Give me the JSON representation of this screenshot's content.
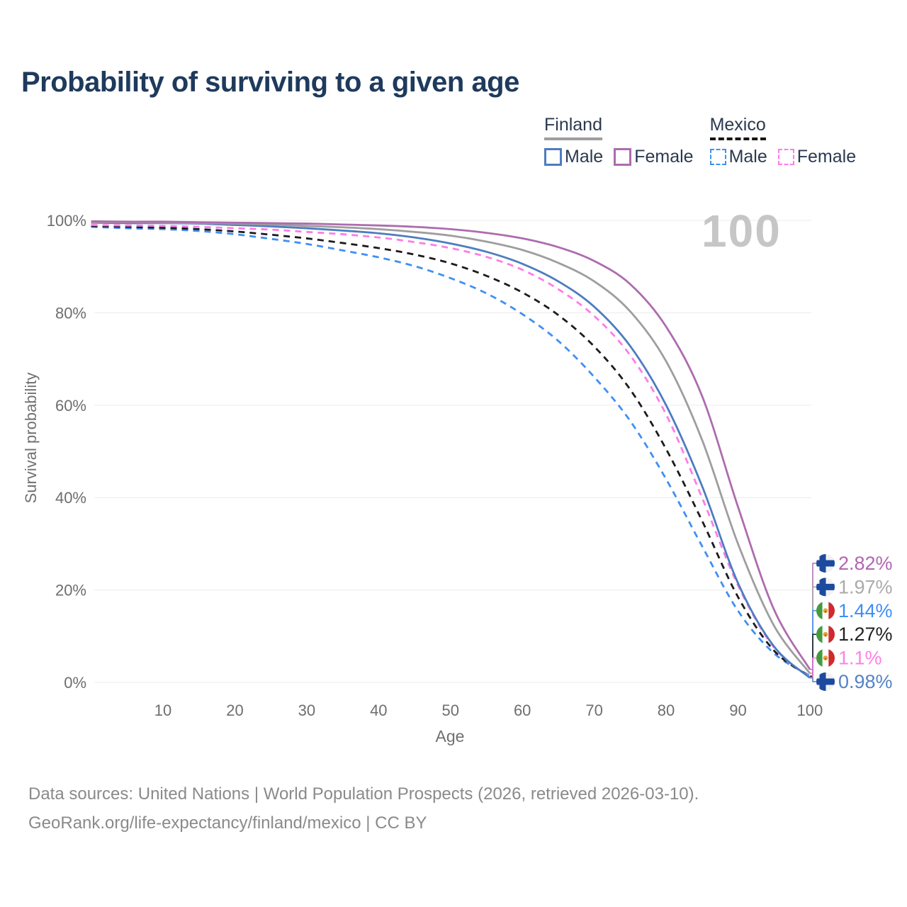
{
  "title": "Probability of surviving to a given age",
  "legend": {
    "groups": [
      {
        "label": "Finland",
        "underline_style": "solid",
        "underline_color": "#9e9e9e",
        "items": [
          {
            "label": "Male",
            "color": "#4d7dbf",
            "dashed": false
          },
          {
            "label": "Female",
            "color": "#ad6cae",
            "dashed": false
          }
        ]
      },
      {
        "label": "Mexico",
        "underline_style": "dashed",
        "underline_color": "#161616",
        "items": [
          {
            "label": "Male",
            "color": "#3f90f4",
            "dashed": true
          },
          {
            "label": "Female",
            "color": "#ff7ce6",
            "dashed": true
          }
        ]
      }
    ]
  },
  "chart_data": {
    "type": "line",
    "title": "Probability of surviving to a given age",
    "xlabel": "Age",
    "ylabel": "Survival probability",
    "hover_age": "100",
    "xlim": [
      0,
      100
    ],
    "ylim": [
      0,
      100
    ],
    "grid": "horizontal",
    "legend_position": "top-right",
    "x_ticks": [
      10,
      20,
      30,
      40,
      50,
      60,
      70,
      80,
      90,
      100
    ],
    "y_ticks": [
      {
        "value": 100,
        "label": "100%"
      },
      {
        "value": 80,
        "label": "80%"
      },
      {
        "value": 60,
        "label": "60%"
      },
      {
        "value": 40,
        "label": "40%"
      },
      {
        "value": 20,
        "label": "20%"
      },
      {
        "value": 0,
        "label": "0%"
      }
    ],
    "ages": [
      0,
      5,
      10,
      15,
      20,
      25,
      30,
      35,
      40,
      45,
      50,
      55,
      60,
      65,
      70,
      75,
      80,
      85,
      90,
      95,
      100
    ],
    "series": [
      {
        "id": "mexico-male",
        "name": "Mexico Male",
        "country": "Mexico",
        "sex": "Male",
        "color": "#3f90f4",
        "label_color": "#3f8ef5",
        "dashed": true,
        "flag": "MX",
        "end_label": "1.44%",
        "values": [
          98.6,
          98.3,
          98.1,
          97.7,
          97.0,
          96.0,
          94.9,
          93.5,
          92.0,
          90.1,
          87.5,
          84.2,
          79.7,
          73.9,
          66.1,
          56.6,
          44.0,
          29.5,
          15.5,
          6.3,
          1.44
        ]
      },
      {
        "id": "mexico-total",
        "name": "Mexico",
        "country": "Mexico",
        "sex": "Both",
        "color": "#1b1b1b",
        "label_color": "#222222",
        "dashed": true,
        "flag": "MX",
        "end_label": "1.27%",
        "values": [
          98.8,
          98.6,
          98.4,
          98.1,
          97.6,
          96.9,
          96.1,
          95.1,
          94.0,
          92.6,
          90.7,
          88.0,
          84.4,
          79.5,
          72.7,
          63.4,
          50.5,
          35.0,
          18.5,
          6.9,
          1.27
        ]
      },
      {
        "id": "mexico-female",
        "name": "Mexico Female",
        "country": "Mexico",
        "sex": "Female",
        "color": "#ff7ce6",
        "label_color": "#ff80e5",
        "dashed": true,
        "flag": "MX",
        "end_label": "1.1%",
        "values": [
          99.0,
          98.9,
          98.8,
          98.6,
          98.3,
          98.0,
          97.5,
          97.0,
          96.3,
          95.3,
          94.0,
          92.1,
          89.3,
          85.1,
          79.3,
          70.8,
          58.0,
          40.0,
          21.0,
          7.6,
          1.1
        ]
      },
      {
        "id": "finland-male",
        "name": "Finland Male",
        "country": "Finland",
        "sex": "Male",
        "color": "#4d7dbf",
        "label_color": "#5583c4",
        "dashed": false,
        "flag": "FI",
        "end_label": "0.98%",
        "values": [
          99.5,
          99.4,
          99.4,
          99.3,
          99.0,
          98.7,
          98.3,
          97.8,
          97.2,
          96.3,
          95.0,
          93.2,
          90.6,
          86.8,
          81.3,
          72.8,
          60.0,
          42.5,
          21.5,
          7.8,
          0.98
        ]
      },
      {
        "id": "finland-total",
        "name": "Finland",
        "country": "Finland",
        "sex": "Both",
        "color": "#9e9e9e",
        "label_color": "#aaaaaa",
        "dashed": false,
        "flag": "FI",
        "end_label": "1.97%",
        "values": [
          99.6,
          99.6,
          99.5,
          99.4,
          99.3,
          99.1,
          98.8,
          98.5,
          98.1,
          97.5,
          96.7,
          95.4,
          93.6,
          90.8,
          86.8,
          80.3,
          69.5,
          52.5,
          30.0,
          12.3,
          1.97
        ]
      },
      {
        "id": "finland-female",
        "name": "Finland Female",
        "country": "Finland",
        "sex": "Female",
        "color": "#ad6cae",
        "label_color": "#b066b0",
        "dashed": false,
        "flag": "FI",
        "end_label": "2.82%",
        "values": [
          99.8,
          99.7,
          99.7,
          99.6,
          99.5,
          99.4,
          99.3,
          99.1,
          98.9,
          98.6,
          98.1,
          97.3,
          96.1,
          94.2,
          91.2,
          86.2,
          77.0,
          62.0,
          38.0,
          15.8,
          2.82
        ]
      }
    ]
  },
  "footer": {
    "line1": "Data sources: United Nations | World Population Prospects (2026, retrieved 2026-03-10).",
    "line2": "GeoRank.org/life-expectancy/finland/mexico | CC BY"
  }
}
